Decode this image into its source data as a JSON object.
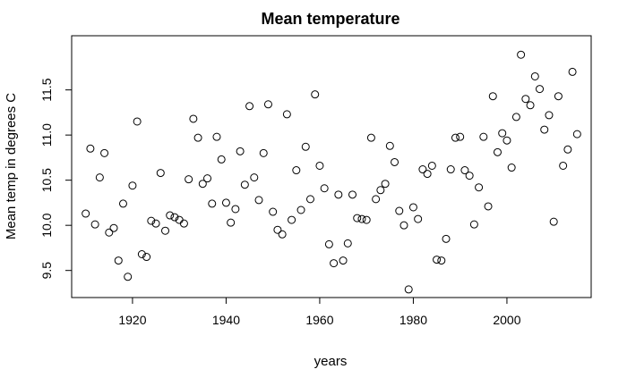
{
  "chart_data": {
    "type": "scatter",
    "title": "Mean temperature",
    "xlabel": "years",
    "ylabel": "Mean temp in degrees C",
    "xlim": [
      1907,
      2018
    ],
    "ylim": [
      9.2,
      12.1
    ],
    "xticks": [
      1920,
      1940,
      1960,
      1980,
      2000
    ],
    "yticks": [
      9.5,
      10.0,
      10.5,
      11.0,
      11.5
    ],
    "ytick_labels": [
      "9.5",
      "10.0",
      "10.5",
      "11.0",
      "11.5"
    ],
    "grid": false,
    "legend": "none",
    "series": [
      {
        "x": [
          1910,
          1911,
          1912,
          1913,
          1914,
          1915,
          1916,
          1917,
          1918,
          1919,
          1920,
          1921,
          1922,
          1923,
          1924,
          1925,
          1926,
          1927,
          1928,
          1929,
          1930,
          1931,
          1932,
          1933,
          1934,
          1935,
          1936,
          1937,
          1938,
          1939,
          1940,
          1941,
          1942,
          1943,
          1944,
          1945,
          1946,
          1947,
          1948,
          1949,
          1950,
          1951,
          1952,
          1953,
          1954,
          1955,
          1956,
          1957,
          1958,
          1959,
          1960,
          1961,
          1962,
          1963,
          1964,
          1965,
          1966,
          1967,
          1968,
          1969,
          1970,
          1971,
          1972,
          1973,
          1974,
          1975,
          1976,
          1977,
          1978,
          1979,
          1980,
          1981,
          1982,
          1983,
          1984,
          1985,
          1986,
          1987,
          1988,
          1989,
          1990,
          1991,
          1992,
          1993,
          1994,
          1995,
          1996,
          1997,
          1998,
          1999,
          2000,
          2001,
          2002,
          2003,
          2004,
          2005,
          2006,
          2007,
          2008,
          2009,
          2010,
          2011,
          2012,
          2013,
          2014,
          2015
        ],
        "y": [
          10.13,
          10.85,
          10.01,
          10.53,
          10.8,
          9.92,
          9.97,
          9.61,
          10.24,
          9.43,
          10.44,
          11.15,
          9.68,
          9.65,
          10.05,
          10.02,
          10.58,
          9.94,
          10.11,
          10.09,
          10.06,
          10.02,
          10.51,
          11.18,
          10.97,
          10.46,
          10.52,
          10.24,
          10.98,
          10.73,
          10.25,
          10.03,
          10.18,
          10.82,
          10.45,
          11.32,
          10.53,
          10.28,
          10.8,
          11.34,
          10.15,
          9.95,
          9.9,
          11.23,
          10.06,
          10.61,
          10.17,
          10.87,
          10.29,
          11.45,
          10.66,
          10.41,
          9.79,
          9.58,
          10.34,
          9.61,
          9.8,
          10.34,
          10.08,
          10.07,
          10.06,
          10.97,
          10.29,
          10.39,
          10.46,
          10.88,
          10.7,
          10.16,
          10.0,
          9.29,
          10.2,
          10.07,
          10.62,
          10.57,
          10.66,
          9.62,
          9.61,
          9.85,
          10.62,
          10.97,
          10.98,
          10.61,
          10.55,
          10.01,
          10.42,
          10.98,
          10.21,
          11.43,
          10.81,
          11.02,
          10.94,
          10.64,
          11.2,
          11.89,
          11.4,
          11.33,
          11.65,
          11.51,
          11.06,
          11.22,
          10.04,
          11.43,
          10.66,
          10.84,
          11.7,
          11.01
        ]
      }
    ]
  }
}
